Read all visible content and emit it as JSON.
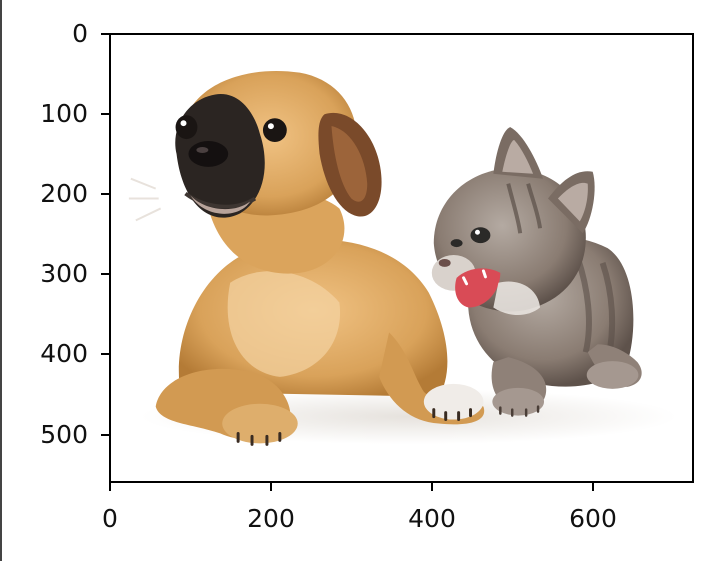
{
  "axes": {
    "y_ticks": [
      "0",
      "100",
      "200",
      "300",
      "400",
      "500"
    ],
    "x_ticks": [
      "0",
      "200",
      "400",
      "600"
    ]
  },
  "image": {
    "subjects": [
      "puppy",
      "kitten"
    ],
    "palette": {
      "puppy_fur": "#d9a25a",
      "puppy_dark": "#2b2522",
      "kitten_fur": "#8a7c72",
      "kitten_stripe": "#5a4e47",
      "mouth": "#d94b56",
      "shadow": "#e9e6e2"
    }
  }
}
